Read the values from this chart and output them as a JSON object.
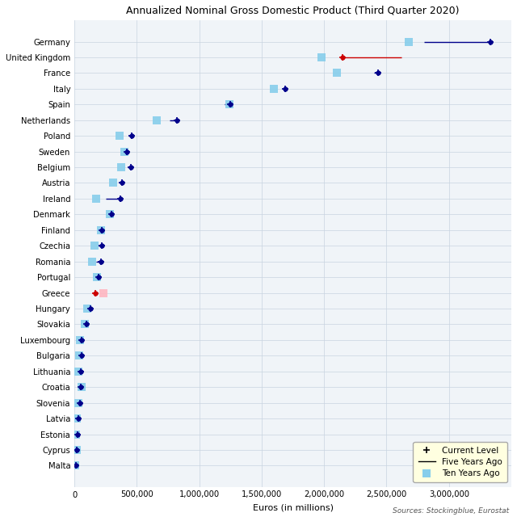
{
  "title": "Annualized Nominal Gross Domestic Product (Third Quarter 2020)",
  "xlabel": "Euros (in millions)",
  "source": "Sources: Stockingblue, Eurostat",
  "countries": [
    "Germany",
    "United Kingdom",
    "France",
    "Italy",
    "Spain",
    "Netherlands",
    "Poland",
    "Sweden",
    "Belgium",
    "Austria",
    "Ireland",
    "Denmark",
    "Finland",
    "Czechia",
    "Romania",
    "Portugal",
    "Greece",
    "Hungary",
    "Slovakia",
    "Luxembourg",
    "Bulgaria",
    "Lithuania",
    "Croatia",
    "Slovenia",
    "Latvia",
    "Estonia",
    "Cyprus",
    "Malta"
  ],
  "current": [
    3330000,
    2150000,
    2430000,
    1690000,
    1250000,
    820000,
    460000,
    420000,
    450000,
    380000,
    370000,
    300000,
    220000,
    220000,
    210000,
    195000,
    165000,
    130000,
    95000,
    60000,
    55000,
    50000,
    52000,
    45000,
    30000,
    27000,
    20000,
    13000
  ],
  "five_years_ago": [
    2800000,
    2620000,
    2400000,
    1690000,
    1200000,
    760000,
    435000,
    410000,
    425000,
    355000,
    250000,
    290000,
    215000,
    190000,
    175000,
    190000,
    185000,
    120000,
    90000,
    55000,
    47000,
    42000,
    48000,
    40000,
    27000,
    23000,
    18000,
    10000
  ],
  "ten_years_ago": [
    2680000,
    1980000,
    2100000,
    1600000,
    1240000,
    660000,
    360000,
    400000,
    375000,
    310000,
    175000,
    285000,
    215000,
    160000,
    140000,
    180000,
    230000,
    100000,
    85000,
    42000,
    40000,
    34000,
    58000,
    35000,
    22000,
    15000,
    18000,
    7000
  ],
  "line_color_default": "#00008B",
  "line_color_uk": "#CC0000",
  "dot_color_default": "#00008B",
  "dot_color_uk": "#CC0000",
  "dot_color_greece": "#CC0000",
  "ten_color_default": "#87CEEB",
  "ten_color_greece": "#FFB6C1",
  "ten_color_uk": "#87CEEB",
  "xlim": [
    0,
    3500000
  ],
  "xticks": [
    0,
    500000,
    1000000,
    1500000,
    2000000,
    2500000,
    3000000
  ],
  "xtick_labels": [
    "0",
    "500,000",
    "1,000,000",
    "1,500,000",
    "2,000,000",
    "2,500,000",
    "3,000,000"
  ],
  "bg_color": "#f0f4f8",
  "grid_color": "#c8d4e0"
}
